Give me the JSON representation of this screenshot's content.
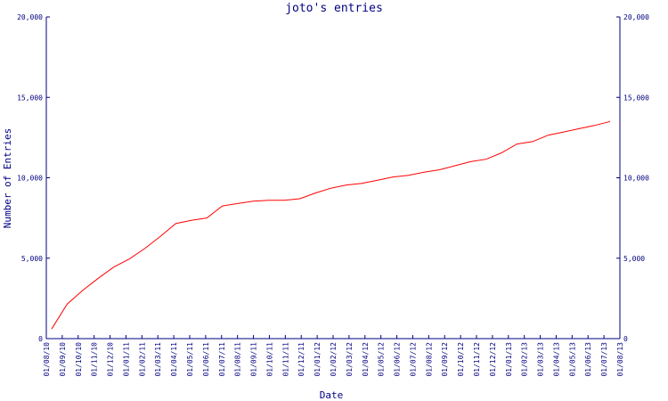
{
  "chart_data": {
    "type": "line",
    "title": "joto's entries",
    "xlabel": "Date",
    "ylabel": "Number of Entries",
    "ylim": [
      0,
      20000
    ],
    "grid": false,
    "y_ticks": [
      "0",
      "5,000",
      "10,000",
      "15,000",
      "20,000"
    ],
    "categories": [
      "01/08/10",
      "01/09/10",
      "01/10/10",
      "01/11/10",
      "01/12/10",
      "01/01/11",
      "01/02/11",
      "01/03/11",
      "01/04/11",
      "01/05/11",
      "01/06/11",
      "01/07/11",
      "01/08/11",
      "01/09/11",
      "01/10/11",
      "01/11/11",
      "01/12/11",
      "01/01/12",
      "01/02/12",
      "01/03/12",
      "01/04/12",
      "01/05/12",
      "01/06/12",
      "01/07/12",
      "01/08/12",
      "01/09/12",
      "01/10/12",
      "01/11/12",
      "01/12/12",
      "01/01/13",
      "01/02/13",
      "01/03/13",
      "01/04/13",
      "01/05/13",
      "01/06/13",
      "01/07/13",
      "01/08/13"
    ],
    "series": [
      {
        "color": "#ff0000",
        "values": [
          600,
          2150,
          3000,
          3750,
          4450,
          4950,
          5600,
          6350,
          7150,
          7350,
          7500,
          8250,
          8400,
          8550,
          8600,
          8600,
          8700,
          9050,
          9350,
          9550,
          9650,
          9850,
          10050,
          10150,
          10350,
          10500,
          10750,
          11000,
          11150,
          11550,
          12100,
          12250,
          12650,
          12850,
          13050,
          13250,
          13500
        ]
      }
    ],
    "series_end_fraction": 0.983
  }
}
